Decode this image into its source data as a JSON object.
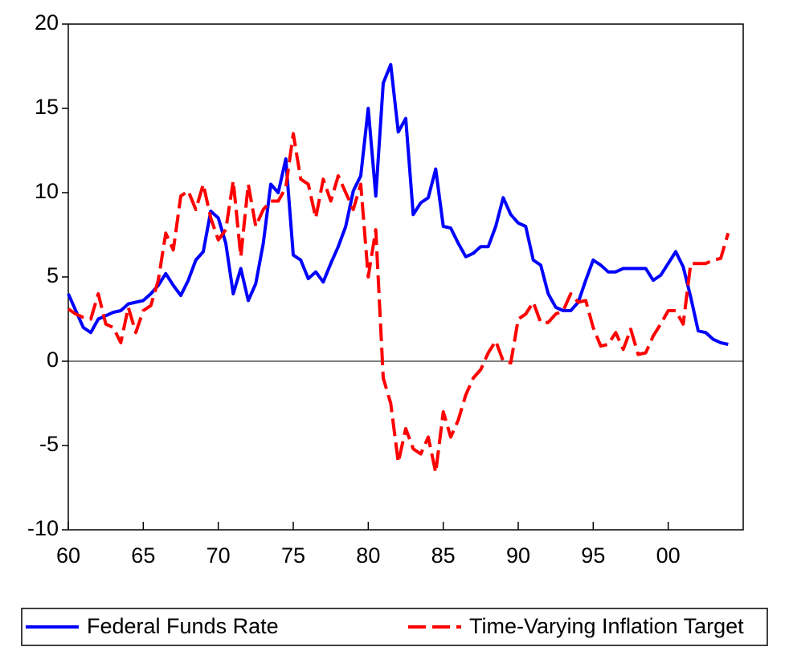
{
  "chart_data": {
    "type": "line",
    "x": [
      1960,
      1960.5,
      1961,
      1961.5,
      1962,
      1962.5,
      1963,
      1963.5,
      1964,
      1964.5,
      1965,
      1965.5,
      1966,
      1966.5,
      1967,
      1967.5,
      1968,
      1968.5,
      1969,
      1969.5,
      1970,
      1970.5,
      1971,
      1971.5,
      1972,
      1972.5,
      1973,
      1973.5,
      1974,
      1974.5,
      1975,
      1975.5,
      1976,
      1976.5,
      1977,
      1977.5,
      1978,
      1978.5,
      1979,
      1979.5,
      1980,
      1980.5,
      1981,
      1981.5,
      1982,
      1982.5,
      1983,
      1983.5,
      1984,
      1984.5,
      1985,
      1985.5,
      1986,
      1986.5,
      1987,
      1987.5,
      1988,
      1988.5,
      1989,
      1989.5,
      1990,
      1990.5,
      1991,
      1991.5,
      1992,
      1992.5,
      1993,
      1993.5,
      1994,
      1994.5,
      1995,
      1995.5,
      1996,
      1996.5,
      1997,
      1997.5,
      1998,
      1998.5,
      1999,
      1999.5,
      2000,
      2000.5,
      2001,
      2001.5,
      2002,
      2002.5,
      2003,
      2003.5,
      2004
    ],
    "series": [
      {
        "name": "Federal Funds Rate",
        "color": "#0000ff",
        "dash": false,
        "values": [
          4.0,
          3.0,
          2.0,
          1.7,
          2.5,
          2.7,
          2.9,
          3.0,
          3.4,
          3.5,
          3.6,
          4.0,
          4.5,
          5.2,
          4.5,
          3.9,
          4.8,
          6.0,
          6.5,
          8.9,
          8.5,
          7.0,
          4.0,
          5.5,
          3.6,
          4.6,
          7.0,
          10.5,
          10.0,
          12.0,
          6.3,
          6.0,
          4.9,
          5.3,
          4.7,
          5.8,
          6.8,
          8.0,
          10.1,
          11.0,
          15.0,
          9.8,
          16.5,
          17.6,
          13.6,
          14.4,
          8.7,
          9.4,
          9.7,
          11.4,
          8.0,
          7.9,
          7.0,
          6.2,
          6.4,
          6.8,
          6.8,
          8.0,
          9.7,
          8.7,
          8.2,
          8.0,
          6.0,
          5.7,
          4.0,
          3.2,
          3.0,
          3.0,
          3.5,
          4.8,
          6.0,
          5.7,
          5.3,
          5.3,
          5.5,
          5.5,
          5.5,
          5.5,
          4.8,
          5.1,
          5.8,
          6.5,
          5.6,
          3.8,
          1.8,
          1.7,
          1.3,
          1.1,
          1.0
        ]
      },
      {
        "name": "Time-Varying Inflation Target",
        "color": "#ff0000",
        "dash": true,
        "values": [
          3.1,
          2.8,
          2.6,
          2.5,
          4.0,
          2.2,
          2.0,
          1.1,
          3.2,
          1.7,
          3.0,
          3.3,
          4.8,
          7.6,
          6.6,
          9.8,
          10.1,
          9.0,
          10.5,
          8.5,
          7.2,
          7.8,
          10.7,
          6.2,
          10.5,
          8.0,
          9.0,
          9.5,
          9.5,
          10.3,
          13.5,
          10.8,
          10.5,
          8.5,
          10.8,
          9.5,
          11.0,
          10.0,
          9.0,
          10.5,
          5.0,
          7.8,
          -1.0,
          -2.5,
          -6.0,
          -4.0,
          -5.2,
          -5.5,
          -4.5,
          -6.6,
          -3.0,
          -4.5,
          -3.5,
          -2.0,
          -1.0,
          -0.5,
          0.5,
          1.2,
          0.0,
          -0.1,
          2.5,
          2.8,
          3.5,
          2.3,
          2.3,
          2.8,
          3.0,
          4.0,
          3.5,
          3.6,
          2.0,
          0.9,
          1.0,
          1.7,
          0.7,
          1.9,
          0.4,
          0.5,
          1.5,
          2.2,
          3.0,
          3.0,
          2.2,
          5.8,
          5.8,
          5.8,
          6.0,
          6.1,
          7.6
        ]
      }
    ],
    "xlim": [
      1960,
      2005
    ],
    "xticks": [
      {
        "value": 1960,
        "label": "60"
      },
      {
        "value": 1965,
        "label": "65"
      },
      {
        "value": 1970,
        "label": "70"
      },
      {
        "value": 1975,
        "label": "75"
      },
      {
        "value": 1980,
        "label": "80"
      },
      {
        "value": 1985,
        "label": "85"
      },
      {
        "value": 1990,
        "label": "90"
      },
      {
        "value": 1995,
        "label": "95"
      },
      {
        "value": 2000,
        "label": "00"
      }
    ],
    "ylim": [
      -10,
      20
    ],
    "yticks": [
      -10,
      -5,
      0,
      5,
      10,
      15,
      20
    ],
    "zero_line": true,
    "legend": "bottom"
  }
}
